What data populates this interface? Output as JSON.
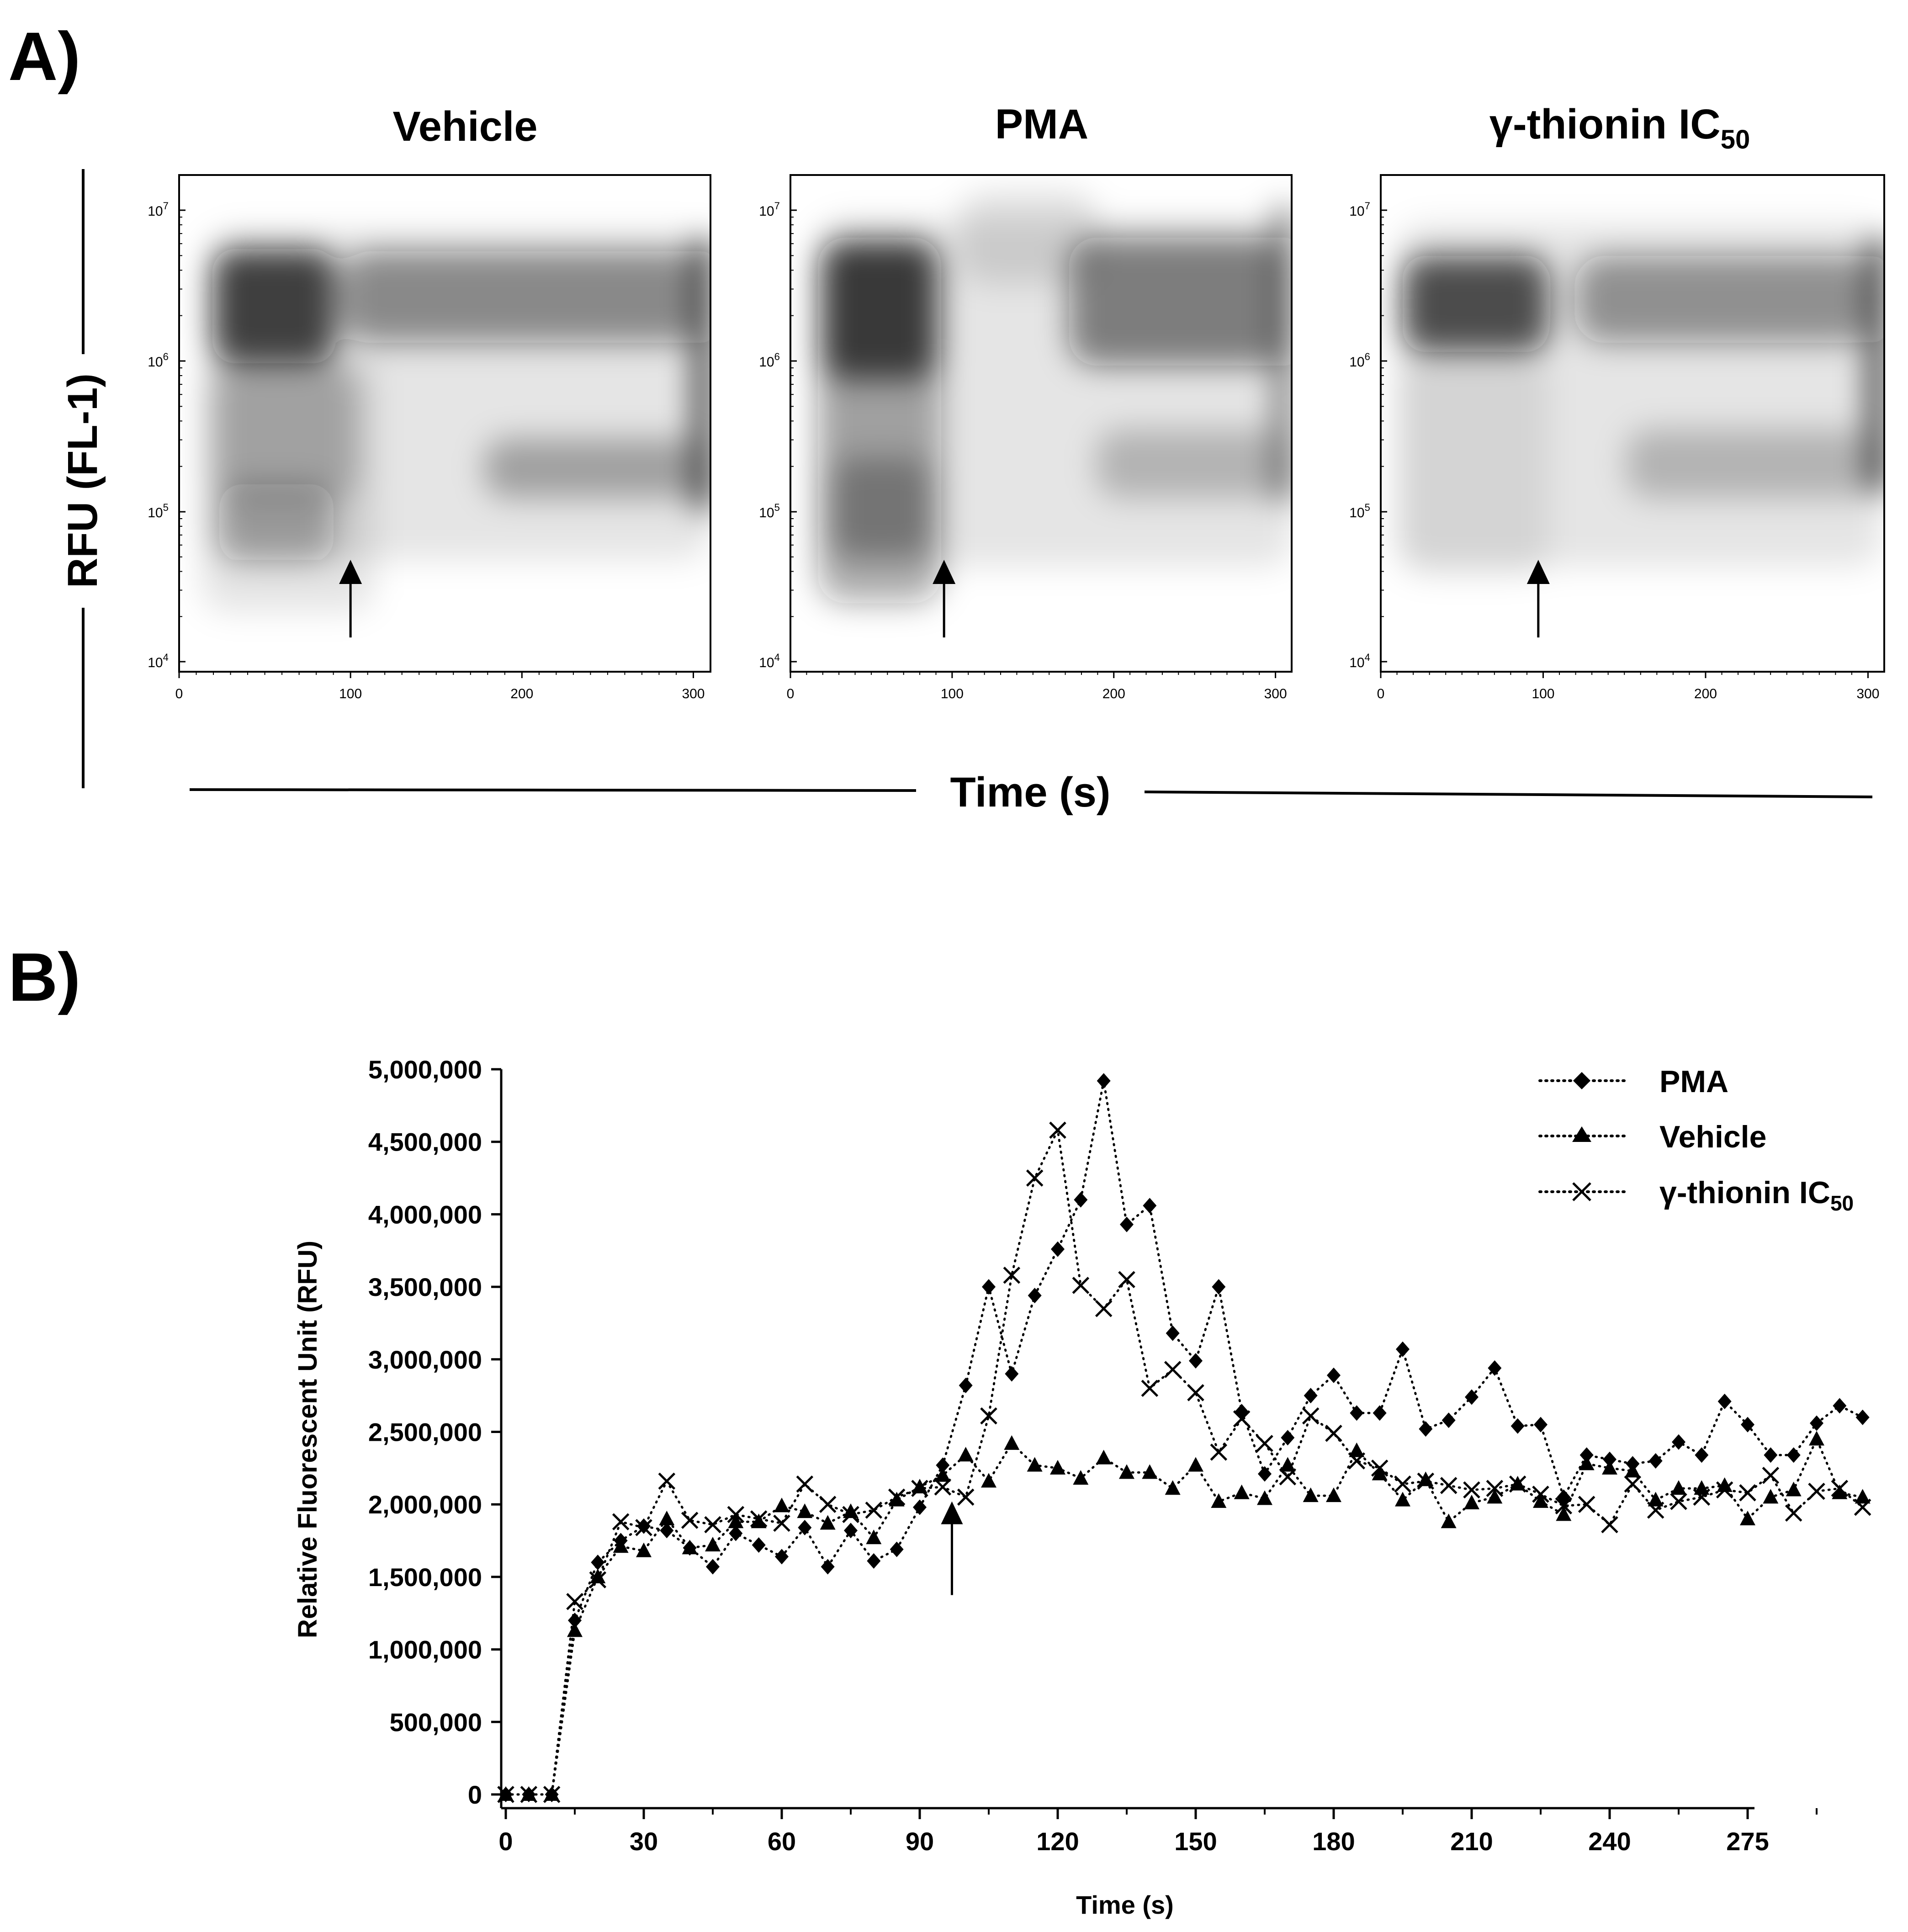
{
  "panel_a": {
    "label": "A)",
    "y_title": "RFU (FL-1)",
    "x_title": "Time (s)",
    "facets": [
      {
        "title": "Vehicle",
        "arrow_time": 100
      },
      {
        "title": "PMA",
        "arrow_time": 95
      },
      {
        "title_main": "γ-thionin IC",
        "title_sub": "50",
        "arrow_time": 97
      }
    ],
    "x_ticks": [
      "0",
      "100",
      "200",
      "300"
    ],
    "y_ticks": [
      {
        "base": "10",
        "exp": "4"
      },
      {
        "base": "10",
        "exp": "5"
      },
      {
        "base": "10",
        "exp": "6"
      },
      {
        "base": "10",
        "exp": "7"
      }
    ],
    "density_color": "#111111"
  },
  "chart_data": {
    "type": "line",
    "label": "B)",
    "title": "",
    "xlabel": "Time (s)",
    "ylabel": "Relative Fluorescent Unit (RFU)",
    "xlim": [
      0,
      300
    ],
    "ylim": [
      0,
      5000000
    ],
    "x_ticks": [
      "0",
      "30",
      "60",
      "90",
      "120",
      "150",
      "180",
      "210",
      "240",
      "275"
    ],
    "y_ticks": [
      "0",
      "500,000",
      "1,000,000",
      "1,500,000",
      "2,000,000",
      "2,500,000",
      "3,000,000",
      "3,500,000",
      "4,000,000",
      "4,500,000",
      "5,000,000"
    ],
    "arrow_time": 97,
    "arrow_value": 1800000,
    "x": [
      0,
      5,
      10,
      15,
      20,
      25,
      30,
      35,
      40,
      45,
      50,
      55,
      60,
      65,
      70,
      75,
      80,
      85,
      90,
      95,
      100,
      105,
      110,
      115,
      120,
      125,
      130,
      135,
      140,
      145,
      150,
      155,
      160,
      165,
      170,
      175,
      180,
      185,
      190,
      195,
      200,
      205,
      210,
      215,
      220,
      225,
      230,
      235,
      240,
      245,
      250,
      255,
      260,
      265,
      270,
      275,
      280,
      285,
      290,
      295
    ],
    "series": [
      {
        "name": "PMA",
        "marker": "diamond",
        "values": [
          0,
          0,
          0,
          1200000,
          1600000,
          1750000,
          1850000,
          1820000,
          1700000,
          1570000,
          1800000,
          1720000,
          1640000,
          1840000,
          1570000,
          1820000,
          1610000,
          1690000,
          1980000,
          2270000,
          2820000,
          3500000,
          2900000,
          3440000,
          3760000,
          4100000,
          4920000,
          3930000,
          4060000,
          3180000,
          2990000,
          3500000,
          2640000,
          2210000,
          2460000,
          2750000,
          2890000,
          2630000,
          2630000,
          3070000,
          2520000,
          2580000,
          2740000,
          2940000,
          2540000,
          2550000,
          2050000,
          2340000,
          2310000,
          2280000,
          2300000,
          2430000,
          2340000,
          2710000,
          2550000,
          2340000,
          2340000,
          2560000,
          2680000,
          2600000
        ]
      },
      {
        "name": "Vehicle",
        "marker": "triangle",
        "values": [
          0,
          0,
          0,
          1130000,
          1500000,
          1710000,
          1680000,
          1900000,
          1700000,
          1720000,
          1880000,
          1880000,
          1990000,
          1950000,
          1870000,
          1950000,
          1770000,
          2030000,
          2120000,
          2200000,
          2340000,
          2160000,
          2420000,
          2270000,
          2250000,
          2180000,
          2320000,
          2220000,
          2220000,
          2110000,
          2270000,
          2020000,
          2080000,
          2040000,
          2270000,
          2060000,
          2060000,
          2370000,
          2210000,
          2030000,
          2170000,
          1880000,
          2010000,
          2050000,
          2140000,
          2020000,
          1930000,
          2280000,
          2250000,
          2230000,
          2030000,
          2110000,
          2110000,
          2130000,
          1900000,
          2050000,
          2100000,
          2450000,
          2080000,
          2050000
        ]
      },
      {
        "name": "γ-thionin IC",
        "name_sub": "50",
        "marker": "x",
        "values": [
          0,
          0,
          0,
          1330000,
          1480000,
          1880000,
          1840000,
          2160000,
          1890000,
          1860000,
          1930000,
          1900000,
          1870000,
          2140000,
          2000000,
          1930000,
          1960000,
          2050000,
          2110000,
          2120000,
          2050000,
          2610000,
          3580000,
          4250000,
          4580000,
          3510000,
          3350000,
          3550000,
          2800000,
          2930000,
          2770000,
          2360000,
          2590000,
          2420000,
          2190000,
          2610000,
          2490000,
          2300000,
          2250000,
          2140000,
          2160000,
          2130000,
          2100000,
          2110000,
          2140000,
          2070000,
          1990000,
          2000000,
          1860000,
          2140000,
          1960000,
          2020000,
          2050000,
          2100000,
          2080000,
          2200000,
          1940000,
          2090000,
          2110000,
          1980000
        ]
      }
    ]
  }
}
